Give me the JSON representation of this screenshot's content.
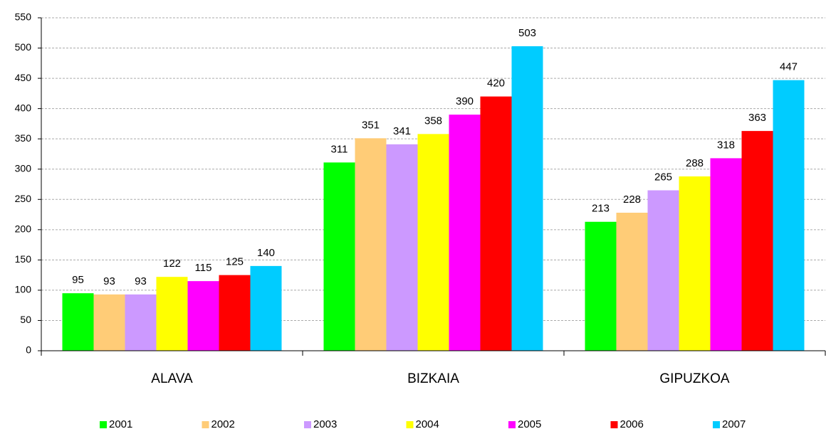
{
  "chart_data": {
    "type": "bar",
    "categories": [
      "ALAVA",
      "BIZKAIA",
      "GIPUZKOA"
    ],
    "series": [
      {
        "name": "2001",
        "color": "#00ff00",
        "values": [
          95,
          311,
          213
        ]
      },
      {
        "name": "2002",
        "color": "#ffcc77",
        "values": [
          93,
          351,
          228
        ]
      },
      {
        "name": "2003",
        "color": "#cc99ff",
        "values": [
          93,
          341,
          265
        ]
      },
      {
        "name": "2004",
        "color": "#ffff00",
        "values": [
          122,
          358,
          288
        ]
      },
      {
        "name": "2005",
        "color": "#ff00ff",
        "values": [
          115,
          390,
          318
        ]
      },
      {
        "name": "2006",
        "color": "#ff0000",
        "values": [
          125,
          420,
          363
        ]
      },
      {
        "name": "2007",
        "color": "#00ccff",
        "values": [
          140,
          503,
          447
        ]
      }
    ],
    "ylim": [
      0,
      550
    ],
    "yticks": [
      0,
      50,
      100,
      150,
      200,
      250,
      300,
      350,
      400,
      450,
      500,
      550
    ],
    "grid": true,
    "legend": "bottom"
  }
}
